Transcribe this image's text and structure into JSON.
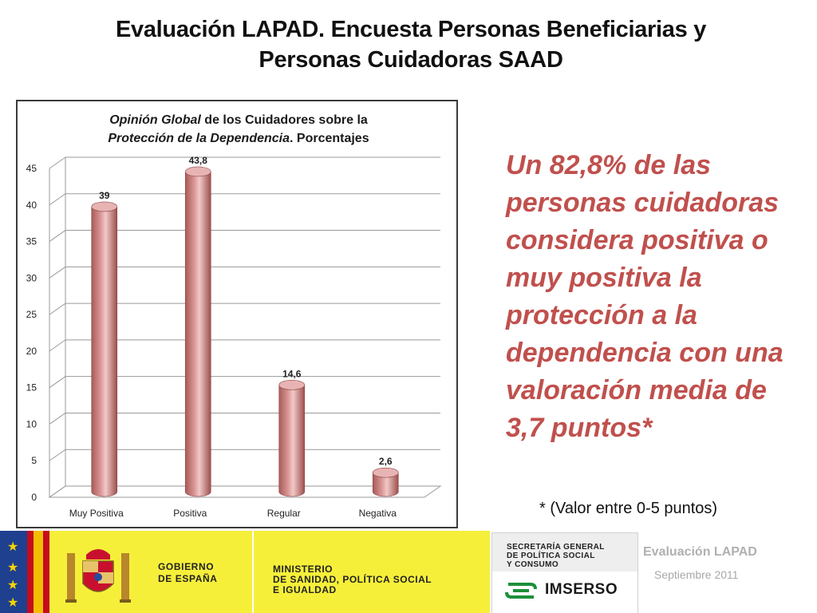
{
  "slide": {
    "title_line1": "Evaluación LAPAD.  Encuesta Personas Beneficiarias y",
    "title_line2": "Personas  Cuidadoras SAAD",
    "takeaway": "Un  82,8%  de las personas cuidadoras considera positiva o muy positiva la protección a la dependencia con una valoración media de 3,7 puntos*",
    "footnote": "* (Valor entre 0-5 puntos)"
  },
  "chart_data": {
    "type": "bar",
    "title_parts": [
      {
        "text": "Opinión Global",
        "italic": true
      },
      {
        "text": " de los Cuidadores sobre la",
        "italic": false
      },
      {
        "text": "Protección de la Dependencia",
        "italic": true
      },
      {
        "text": ". Porcentajes",
        "italic": false
      }
    ],
    "categories": [
      "Muy Positiva",
      "Positiva",
      "Regular",
      "Negativa"
    ],
    "values": [
      39,
      43.8,
      14.6,
      2.6
    ],
    "value_labels": [
      "39",
      "43,8",
      "14,6",
      "2,6"
    ],
    "y_ticks": [
      "0",
      "5",
      "10",
      "15",
      "20",
      "25",
      "30",
      "35",
      "40",
      "45"
    ],
    "ylim": [
      0,
      45
    ],
    "bar_color": "#d99694",
    "grid": true,
    "legend": false,
    "style": "3d-cylinder"
  },
  "footer": {
    "eu_flag_icon": "eu-flag-icon",
    "spain_flag_icon": "spain-flag-icon",
    "coat_of_arms_icon": "coat-of-arms-icon",
    "gobierno_line1": "GOBIERNO",
    "gobierno_line2": "DE ESPAÑA",
    "ministerio_line1": "MINISTERIO",
    "ministerio_line2": "DE SANIDAD, POLÍTICA SOCIAL",
    "ministerio_line3": "E IGUALDAD",
    "secretaria_line1": "SECRETARÍA GENERAL",
    "secretaria_line2": "DE POLÍTICA SOCIAL",
    "secretaria_line3": "Y CONSUMO",
    "imserso": "IMSERSO",
    "evaluacion": "Evaluación LAPAD",
    "fecha": "Septiembre 2011"
  },
  "colors": {
    "accent_red": "#c0504d",
    "panel_yellow": "#f6ef3a"
  }
}
